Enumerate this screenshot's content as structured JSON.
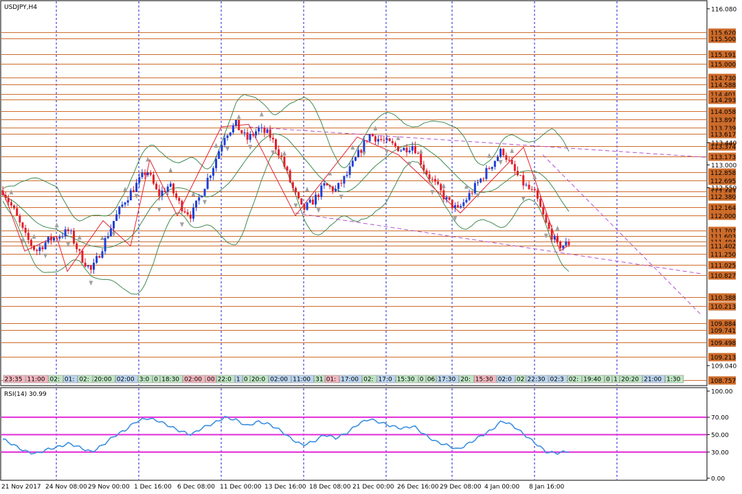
{
  "window": {
    "title": "USDJPY,H4"
  },
  "rsi_panel": {
    "label": "RSI(14) 30.99"
  },
  "colors": {
    "level_line": "#cd6b2a",
    "bull_candle": "#1f3fd6",
    "bear_candle": "#e0202c",
    "band": "#3f8a4f",
    "trend": "#b44fd0",
    "rsi_line": "#3a8fe0",
    "rsi_level": "#e22ad9",
    "grid": "#1a1adb"
  },
  "price_scale": {
    "labels": [
      "116.080",
      "113.440",
      "113.000",
      "112.550",
      "109.040"
    ]
  },
  "levels": [
    "115.620",
    "115.500",
    "115.191",
    "115.000",
    "114.730",
    "114.588",
    "114.401",
    "114.293",
    "114.058",
    "113.897",
    "113.739",
    "113.617",
    "113.374",
    "113.173",
    "112.858",
    "112.695",
    "112.483",
    "112.380",
    "112.164",
    "112.000",
    "111.707",
    "111.603",
    "111.494",
    "111.402",
    "111.250",
    "111.025",
    "110.827",
    "110.388",
    "110.213",
    "109.884",
    "109.741",
    "109.498",
    "109.213",
    "108.757"
  ],
  "time_tags": [
    {
      "text": "23:35",
      "t": "red"
    },
    {
      "text": "11:00",
      "t": "red"
    },
    {
      "text": "02:",
      "t": "green"
    },
    {
      "text": "01:",
      "t": "blue"
    },
    {
      "text": "02:",
      "t": "green"
    },
    {
      "text": "20:00",
      "t": "green"
    },
    {
      "text": "02:00",
      "t": "blue"
    },
    {
      "text": "3:0",
      "t": "green"
    },
    {
      "text": "0",
      "t": "green"
    },
    {
      "text": "18:30",
      "t": "green"
    },
    {
      "text": "02:00",
      "t": "red"
    },
    {
      "text": "00",
      "t": "red"
    },
    {
      "text": "22:0",
      "t": "green"
    },
    {
      "text": "1",
      "t": "blue"
    },
    {
      "text": "0",
      "t": "green"
    },
    {
      "text": "20:0",
      "t": "green"
    },
    {
      "text": "02:00",
      "t": "blue"
    },
    {
      "text": "11:00",
      "t": "blue"
    },
    {
      "text": "31",
      "t": "green"
    },
    {
      "text": "01:",
      "t": "red"
    },
    {
      "text": "17:00",
      "t": "blue"
    },
    {
      "text": "02:",
      "t": "green"
    },
    {
      "text": "17:0",
      "t": "blue"
    },
    {
      "text": "15:30",
      "t": "green"
    },
    {
      "text": "0",
      "t": "green"
    },
    {
      "text": "06",
      "t": "green"
    },
    {
      "text": "17:30",
      "t": "blue"
    },
    {
      "text": "20:",
      "t": "green"
    },
    {
      "text": "15:30",
      "t": "red"
    },
    {
      "text": "02:0",
      "t": "blue"
    },
    {
      "text": "02",
      "t": "green"
    },
    {
      "text": "22:30",
      "t": "blue"
    },
    {
      "text": "02:3",
      "t": "blue"
    },
    {
      "text": "02:",
      "t": "green"
    },
    {
      "text": "19:40",
      "t": "green"
    },
    {
      "text": "0",
      "t": "green"
    },
    {
      "text": "1",
      "t": "green"
    },
    {
      "text": "20:20",
      "t": "green"
    },
    {
      "text": "21:00",
      "t": "blue"
    },
    {
      "text": "1:30",
      "t": "green"
    }
  ],
  "x_axis": {
    "labels": [
      "21 Nov 2017",
      "24 Nov 08:00",
      "29 Nov 00:00",
      "1 Dec 16:00",
      "6 Dec 08:00",
      "11 Dec 00:00",
      "13 Dec 16:00",
      "18 Dec 08:00",
      "21 Dec 00:00",
      "26 Dec 16:00",
      "29 Dec 08:00",
      "4 Jan 00:00",
      "8 Jan 16:00"
    ]
  },
  "chart_data": [
    {
      "type": "candlestick",
      "title": "USDJPY,H4",
      "ylim": [
        108.7,
        116.2
      ],
      "x": [
        "21 Nov 2017",
        "24 Nov 08:00",
        "29 Nov 00:00",
        "1 Dec 16:00",
        "6 Dec 08:00",
        "11 Dec 00:00",
        "13 Dec 16:00",
        "18 Dec 08:00",
        "21 Dec 00:00",
        "26 Dec 16:00",
        "29 Dec 08:00",
        "4 Jan 00:00",
        "8 Jan 16:00"
      ],
      "close_path": [
        112.5,
        112.1,
        111.6,
        111.3,
        111.5,
        111.6,
        111.7,
        111.2,
        110.9,
        111.4,
        111.9,
        112.3,
        112.6,
        112.9,
        112.4,
        112.6,
        112.2,
        112.0,
        112.5,
        113.0,
        113.6,
        113.8,
        113.5,
        113.7,
        113.6,
        113.2,
        112.6,
        112.1,
        112.3,
        112.6,
        112.5,
        112.8,
        113.2,
        113.6,
        113.5,
        113.4,
        113.3,
        113.4,
        112.9,
        112.6,
        112.3,
        112.1,
        112.4,
        112.7,
        113.0,
        113.3,
        112.9,
        112.6,
        112.4,
        111.8,
        111.4,
        111.45
      ]
    },
    {
      "type": "line",
      "title": "RSI(14) 30.99",
      "ylim": [
        0,
        100
      ],
      "levels": [
        30,
        50,
        70
      ],
      "values": [
        45,
        38,
        31,
        28,
        33,
        36,
        40,
        35,
        30,
        38,
        48,
        55,
        65,
        69,
        66,
        60,
        54,
        50,
        58,
        63,
        70,
        67,
        60,
        65,
        62,
        55,
        45,
        38,
        42,
        50,
        46,
        52,
        62,
        68,
        64,
        60,
        57,
        60,
        50,
        42,
        38,
        33,
        40,
        48,
        55,
        66,
        60,
        50,
        40,
        30,
        29,
        30.99
      ]
    }
  ]
}
